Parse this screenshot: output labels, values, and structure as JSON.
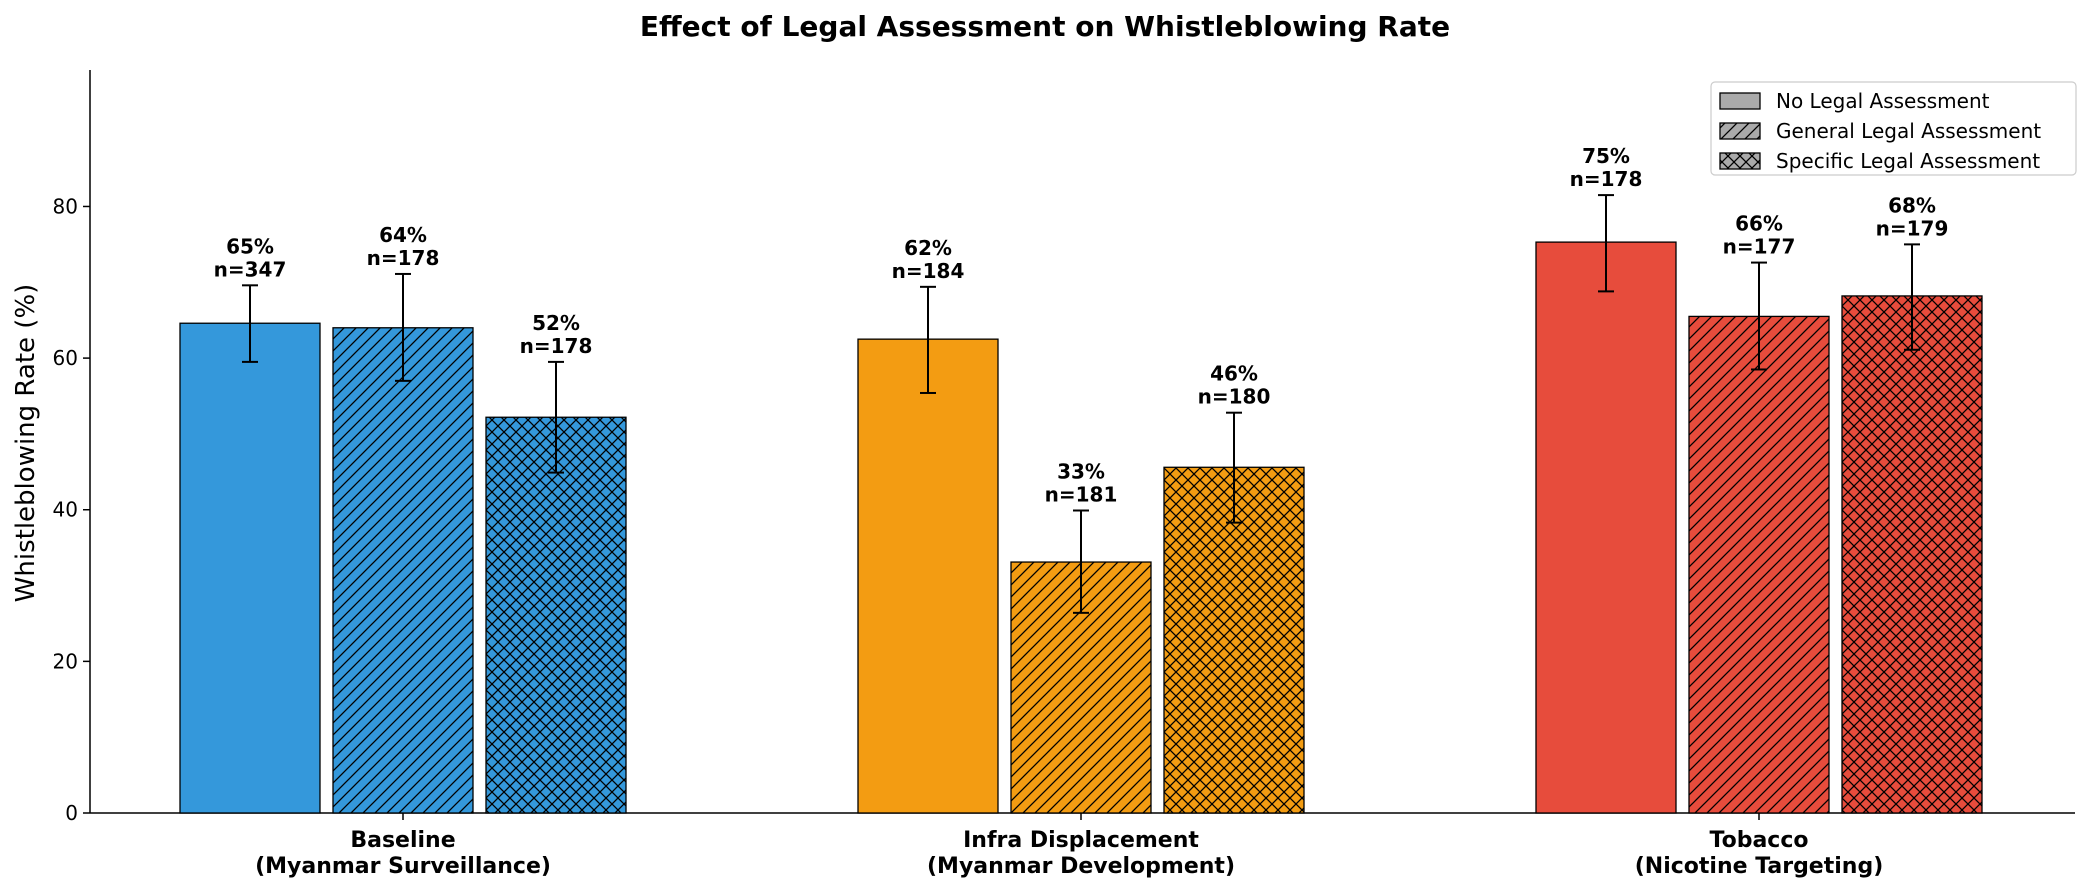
{
  "chart_data": {
    "type": "bar",
    "title": "Effect of Legal Assessment on Whistleblowing Rate",
    "ylabel": "Whistleblowing Rate (%)",
    "xlabel": "",
    "ylim": [
      0,
      98
    ],
    "yticks": [
      0,
      20,
      40,
      60,
      80
    ],
    "categories": [
      [
        "Baseline",
        "(Myanmar Surveillance)"
      ],
      [
        "Infra Displacement",
        "(Myanmar Development)"
      ],
      [
        "Tobacco",
        "(Nicotine Targeting)"
      ]
    ],
    "category_colors": [
      "#3498db",
      "#f39c12",
      "#e74c3c"
    ],
    "legend_color": "#aaaaaa",
    "legend_position": "top-right",
    "grid": false,
    "series": [
      {
        "name": "No Legal Assessment",
        "hatch": "none",
        "values": [
          64.6,
          62.5,
          75.3
        ],
        "error_low": [
          59.5,
          55.4,
          68.8
        ],
        "error_high": [
          69.6,
          69.4,
          81.5
        ],
        "labels": [
          "65%",
          "62%",
          "75%"
        ],
        "n_labels": [
          "n=347",
          "n=184",
          "n=178"
        ]
      },
      {
        "name": "General Legal Assessment",
        "hatch": "diagonal",
        "values": [
          64.0,
          33.1,
          65.5
        ],
        "error_low": [
          57.0,
          26.4,
          58.5
        ],
        "error_high": [
          71.1,
          39.9,
          72.6
        ],
        "labels": [
          "64%",
          "33%",
          "66%"
        ],
        "n_labels": [
          "n=178",
          "n=181",
          "n=177"
        ]
      },
      {
        "name": "Specific Legal Assessment",
        "hatch": "crosshatch",
        "values": [
          52.2,
          45.6,
          68.2
        ],
        "error_low": [
          44.9,
          38.3,
          61.1
        ],
        "error_high": [
          59.5,
          52.8,
          75.0
        ],
        "labels": [
          "52%",
          "46%",
          "68%"
        ],
        "n_labels": [
          "n=178",
          "n=180",
          "n=179"
        ]
      }
    ]
  }
}
